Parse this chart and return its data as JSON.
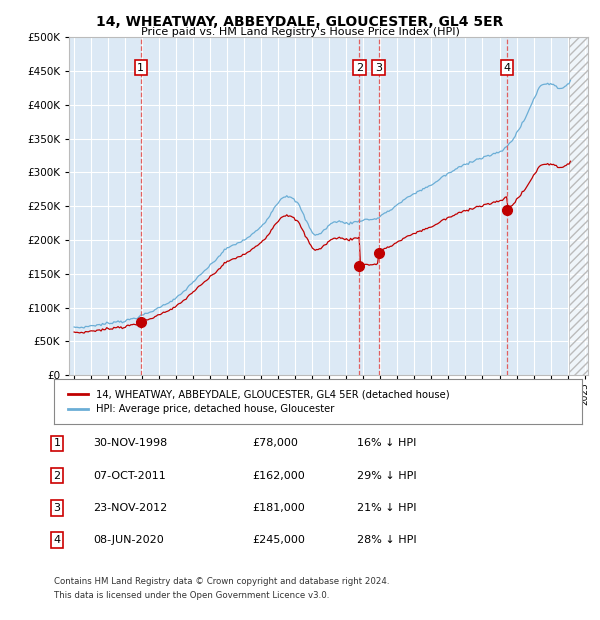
{
  "title": "14, WHEATWAY, ABBEYDALE, GLOUCESTER, GL4 5ER",
  "subtitle": "Price paid vs. HM Land Registry's House Price Index (HPI)",
  "ylim": [
    0,
    500000
  ],
  "yticks": [
    0,
    50000,
    100000,
    150000,
    200000,
    250000,
    300000,
    350000,
    400000,
    450000,
    500000
  ],
  "xlim_start": 1994.7,
  "xlim_end": 2025.2,
  "hatch_start": 2024.08,
  "background_color": "#dce9f5",
  "grid_color": "#ffffff",
  "hpi_color": "#6baed6",
  "price_color": "#c00000",
  "vline_color": "#e06060",
  "sales": [
    {
      "num": 1,
      "date_str": "30-NOV-1998",
      "date_x": 1998.92,
      "price": 78000,
      "label": "16% ↓ HPI"
    },
    {
      "num": 2,
      "date_str": "07-OCT-2011",
      "date_x": 2011.77,
      "price": 162000,
      "label": "29% ↓ HPI"
    },
    {
      "num": 3,
      "date_str": "23-NOV-2012",
      "date_x": 2012.9,
      "price": 181000,
      "label": "21% ↓ HPI"
    },
    {
      "num": 4,
      "date_str": "08-JUN-2020",
      "date_x": 2020.44,
      "price": 245000,
      "label": "28% ↓ HPI"
    }
  ],
  "legend_line1": "14, WHEATWAY, ABBEYDALE, GLOUCESTER, GL4 5ER (detached house)",
  "legend_line2": "HPI: Average price, detached house, Gloucester",
  "footer1": "Contains HM Land Registry data © Crown copyright and database right 2024.",
  "footer2": "This data is licensed under the Open Government Licence v3.0."
}
